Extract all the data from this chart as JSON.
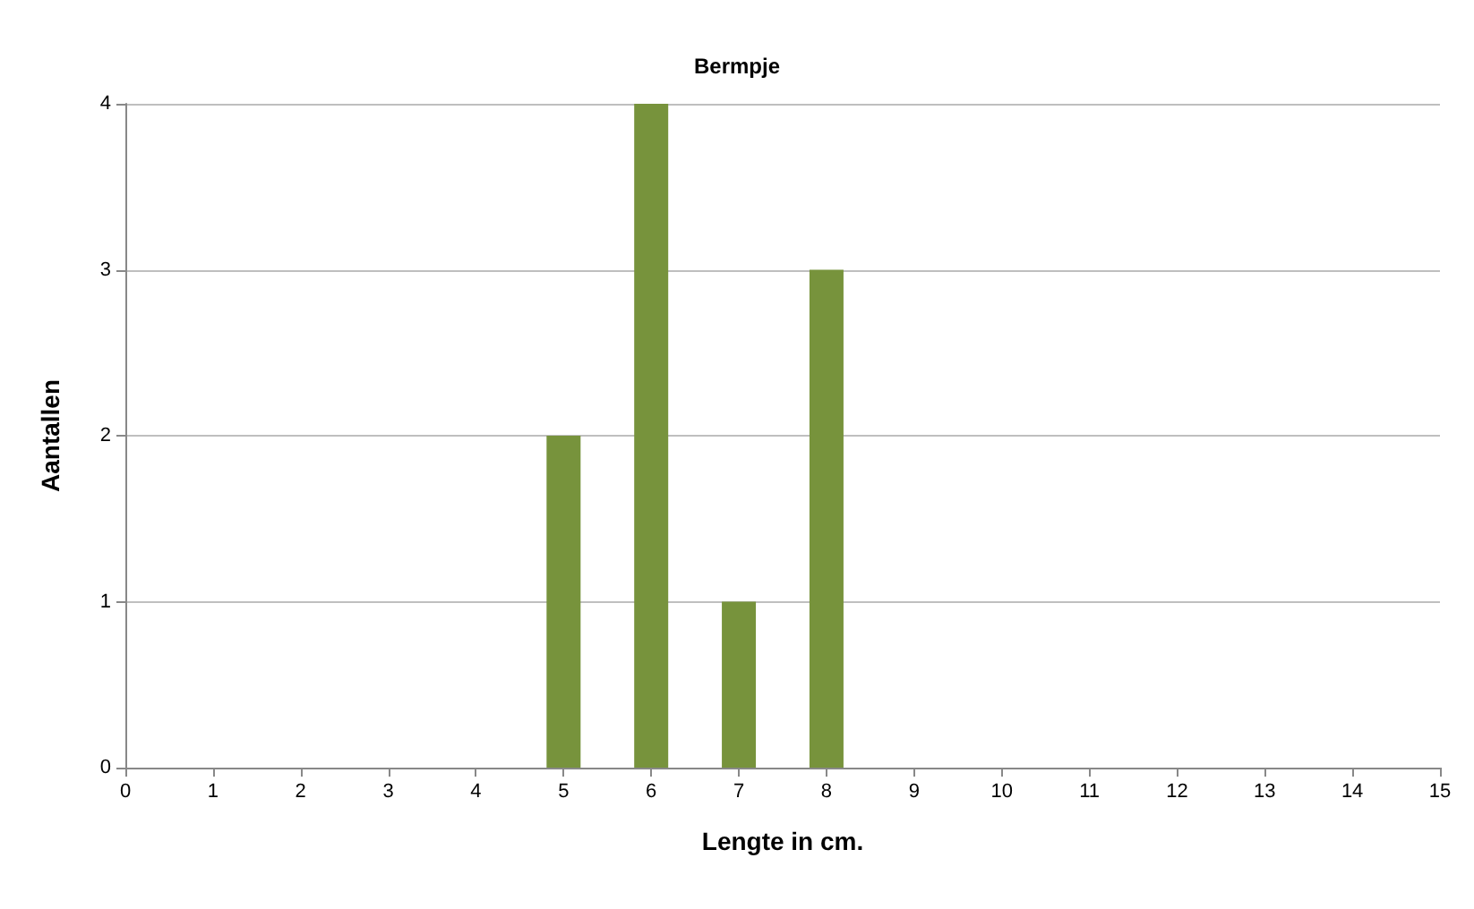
{
  "chart_data": {
    "type": "bar",
    "title": "Bermpje",
    "xlabel": "Lengte in cm.",
    "ylabel": "Aantallen",
    "x": [
      5,
      6,
      7,
      8
    ],
    "values": [
      2,
      4,
      1,
      3
    ],
    "color": "#77933c",
    "xlim": [
      0,
      15
    ],
    "xticks": [
      0,
      1,
      2,
      3,
      4,
      5,
      6,
      7,
      8,
      9,
      10,
      11,
      12,
      13,
      14,
      15
    ],
    "ylim": [
      0,
      4
    ],
    "yticks": [
      0,
      1,
      2,
      3,
      4
    ],
    "grid": "y"
  }
}
